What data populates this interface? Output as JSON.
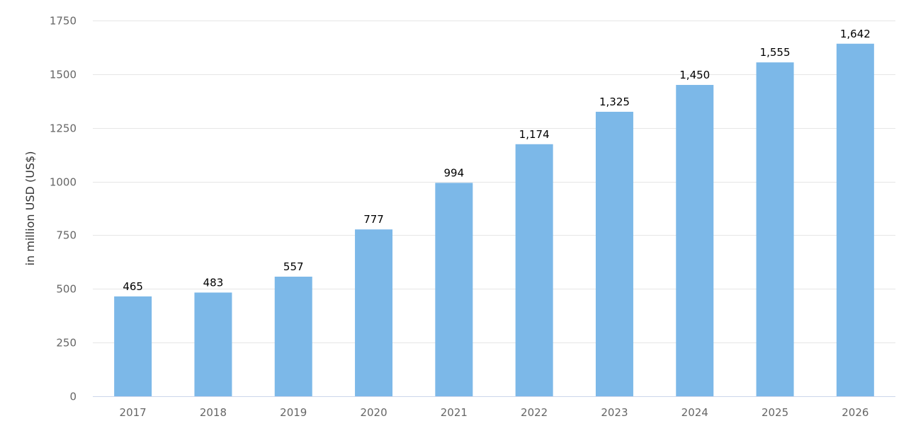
{
  "chart_data": {
    "type": "bar",
    "title": "",
    "xlabel": "",
    "ylabel": "in million USD (US$)",
    "categories": [
      "2017",
      "2018",
      "2019",
      "2020",
      "2021",
      "2022",
      "2023",
      "2024",
      "2025",
      "2026"
    ],
    "values": [
      465,
      483,
      557,
      777,
      994,
      1174,
      1325,
      1450,
      1555,
      1642
    ],
    "data_labels": [
      "465",
      "483",
      "557",
      "777",
      "994",
      "1,174",
      "1,325",
      "1,450",
      "1,555",
      "1,642"
    ],
    "ylim": [
      0,
      1750
    ],
    "yticks": [
      0,
      250,
      500,
      750,
      1000,
      1250,
      1500,
      1750
    ],
    "ytick_labels": [
      "0",
      "250",
      "500",
      "750",
      "1000",
      "1250",
      "1500",
      "1750"
    ],
    "grid": true,
    "legend": "none",
    "bar_color": "#7cb8e8"
  }
}
